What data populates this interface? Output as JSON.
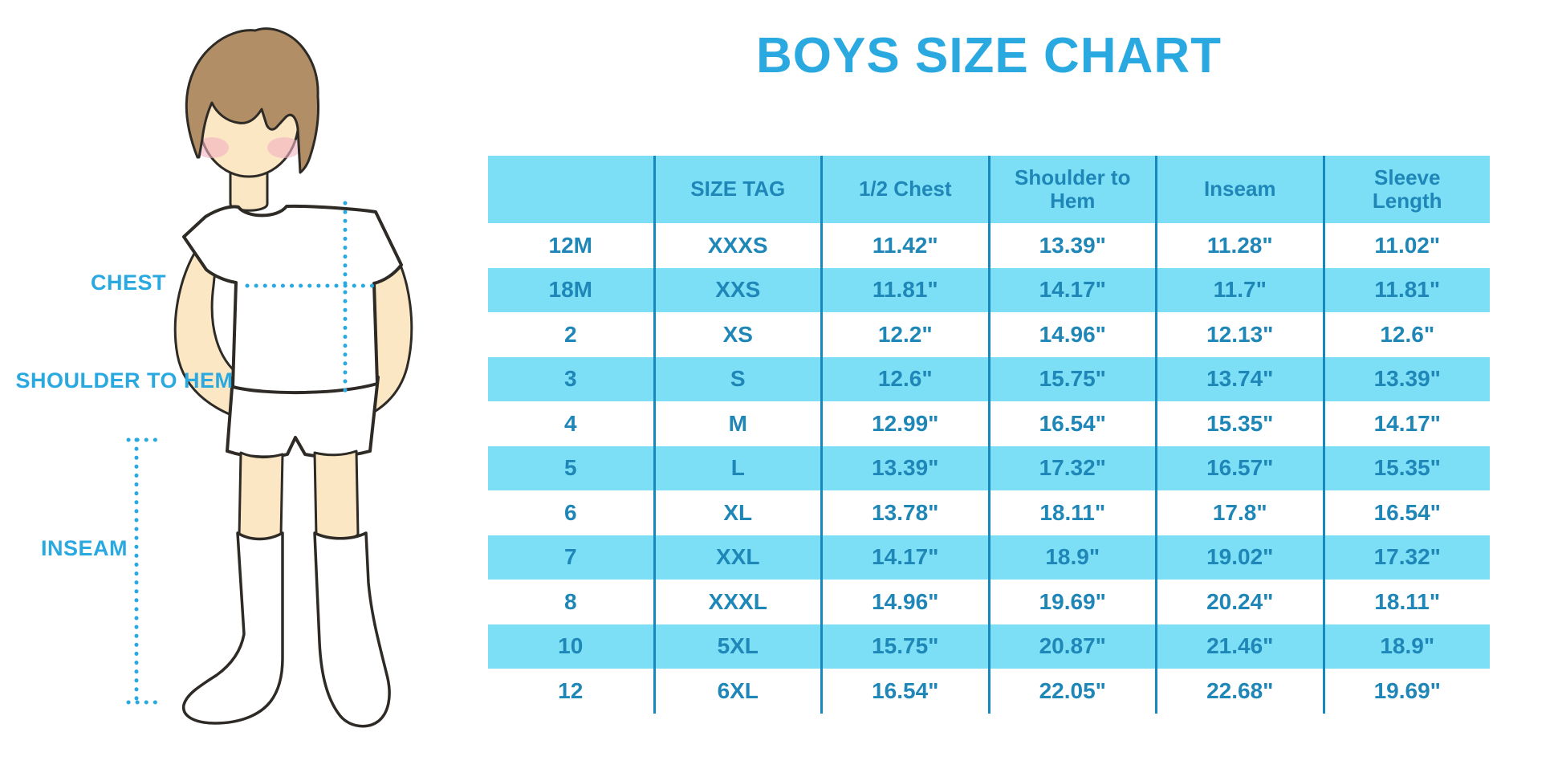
{
  "title": "BOYS SIZE CHART",
  "diagram": {
    "labels": {
      "chest": "CHEST",
      "shoulder_to_hem": "SHOULDER TO HEM",
      "inseam": "INSEAM"
    }
  },
  "chart_data": {
    "type": "table",
    "title": "BOYS SIZE CHART",
    "units": "inches",
    "row_stripe": "alternating white / light blue",
    "columns": [
      "",
      "SIZE TAG",
      "1/2 Chest",
      "Shoulder to Hem",
      "Inseam",
      "Sleeve Length"
    ],
    "rows": [
      [
        "12M",
        "XXXS",
        "11.42\"",
        "13.39\"",
        "11.28\"",
        "11.02\""
      ],
      [
        "18M",
        "XXS",
        "11.81\"",
        "14.17\"",
        "11.7\"",
        "11.81\""
      ],
      [
        "2",
        "XS",
        "12.2\"",
        "14.96\"",
        "12.13\"",
        "12.6\""
      ],
      [
        "3",
        "S",
        "12.6\"",
        "15.75\"",
        "13.74\"",
        "13.39\""
      ],
      [
        "4",
        "M",
        "12.99\"",
        "16.54\"",
        "15.35\"",
        "14.17\""
      ],
      [
        "5",
        "L",
        "13.39\"",
        "17.32\"",
        "16.57\"",
        "15.35\""
      ],
      [
        "6",
        "XL",
        "13.78\"",
        "18.11\"",
        "17.8\"",
        "16.54\""
      ],
      [
        "7",
        "XXL",
        "14.17\"",
        "18.9\"",
        "19.02\"",
        "17.32\""
      ],
      [
        "8",
        "XXXL",
        "14.96\"",
        "19.69\"",
        "20.24\"",
        "18.11\""
      ],
      [
        "10",
        "5XL",
        "15.75\"",
        "20.87\"",
        "21.46\"",
        "18.9\""
      ],
      [
        "12",
        "6XL",
        "16.54\"",
        "22.05\"",
        "22.68\"",
        "19.69\""
      ]
    ]
  },
  "colors": {
    "accent": "#29A9E0",
    "table_fill": "#7CDFF6",
    "table_text": "#1F87B8",
    "grid_line": "#1589BF",
    "skin": "#FBE7C4",
    "hair": "#B28E66",
    "blush": "#F3B3C2",
    "outline": "#2E2A26"
  }
}
